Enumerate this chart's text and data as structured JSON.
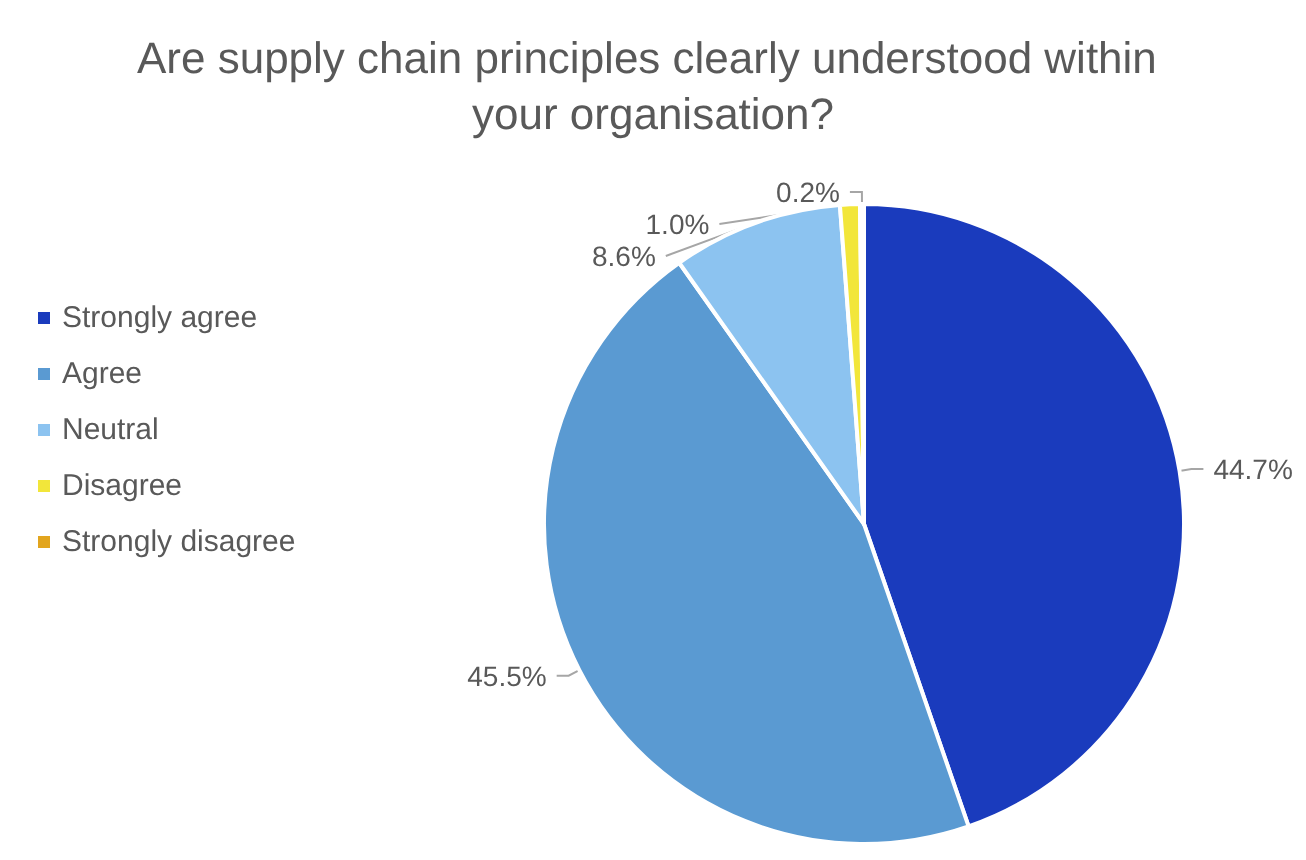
{
  "chart_data": {
    "type": "pie",
    "title": "Are supply chain principles clearly understood within your organisation?",
    "categories": [
      "Strongly agree",
      "Agree",
      "Neutral",
      "Disagree",
      "Strongly disagree"
    ],
    "values": [
      44.7,
      45.5,
      8.6,
      1.0,
      0.2
    ],
    "value_labels": [
      "44.7%",
      "45.5%",
      "8.6%",
      "1.0%",
      "0.2%"
    ],
    "colors": [
      "#1a3bbd",
      "#5a9ad2",
      "#8cc3f0",
      "#f2e63a",
      "#e2a51e"
    ],
    "legend": "left"
  }
}
